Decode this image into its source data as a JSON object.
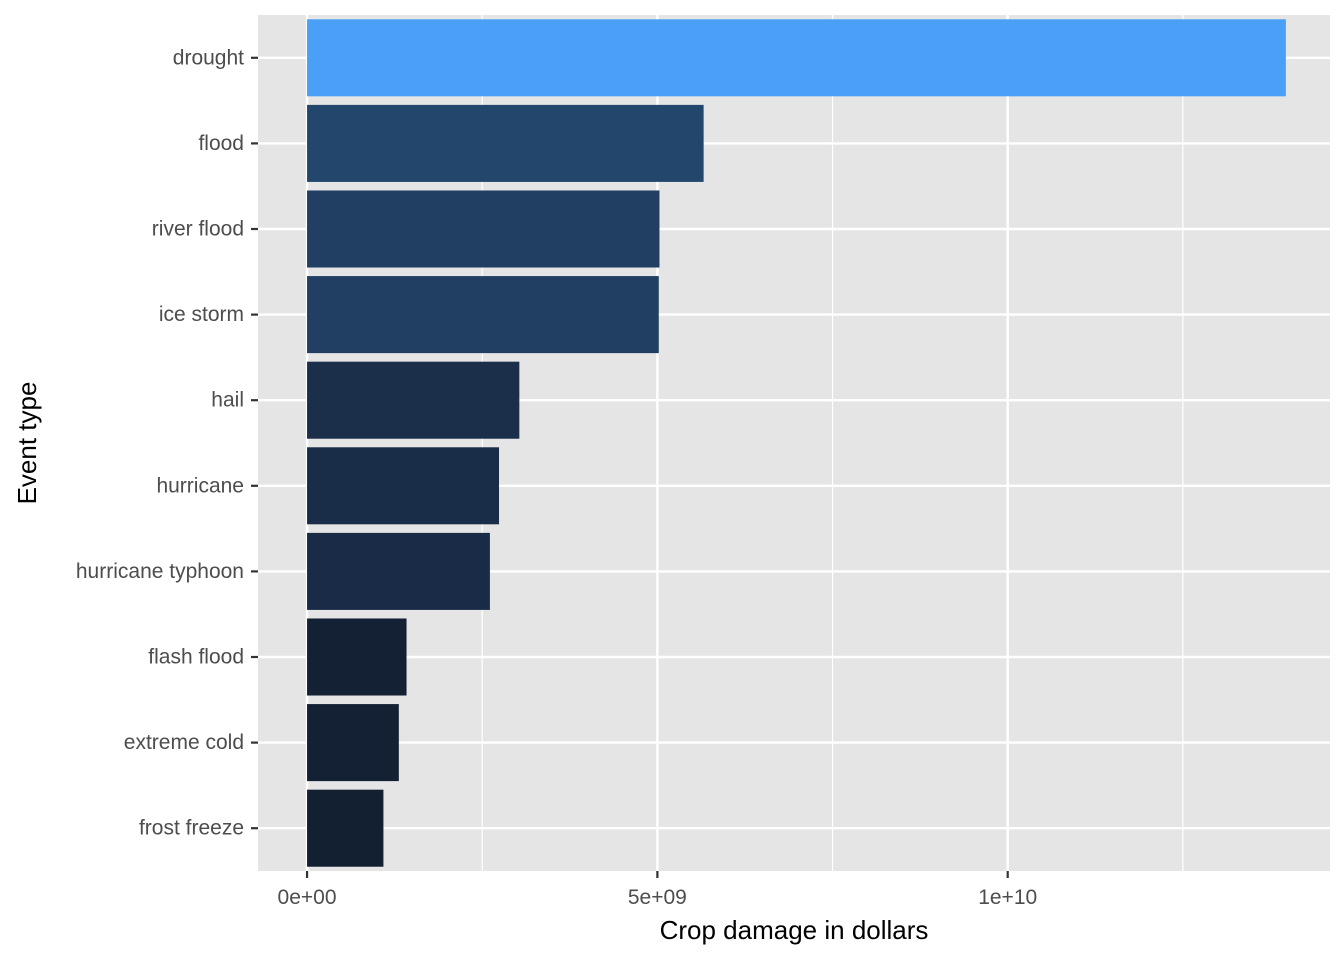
{
  "chart_data": {
    "type": "bar",
    "orientation": "horizontal",
    "title": "",
    "xlabel": "Crop damage in dollars",
    "ylabel": "Event type",
    "xlim": [
      -700000000,
      14600000000
    ],
    "x_ticks": [
      {
        "value": 0,
        "label": "0e+00"
      },
      {
        "value": 5000000000,
        "label": "5e+09"
      },
      {
        "value": 10000000000,
        "label": "1e+10"
      }
    ],
    "x_minor_ticks": [
      2500000000,
      7500000000,
      12500000000
    ],
    "grid": true,
    "legend": "none",
    "panel_background": "#e5e5e5",
    "grid_color": "#ffffff",
    "fill_gradient": {
      "low": "#132b43",
      "high": "#56b1f7"
    },
    "categories": [
      "drought",
      "flood",
      "river flood",
      "ice storm",
      "hail",
      "hurricane",
      "hurricane typhoon",
      "flash flood",
      "extreme cold",
      "frost freeze"
    ],
    "values": [
      13970000000,
      5660000000,
      5030000000,
      5020000000,
      3030000000,
      2740000000,
      2610000000,
      1420000000,
      1310000000,
      1090000000
    ],
    "bar_colors": [
      "#4a9ff7",
      "#23466d",
      "#203f63",
      "#203f63",
      "#1b2f4b",
      "#1a2d48",
      "#192b46",
      "#142135",
      "#142134",
      "#132032"
    ]
  }
}
